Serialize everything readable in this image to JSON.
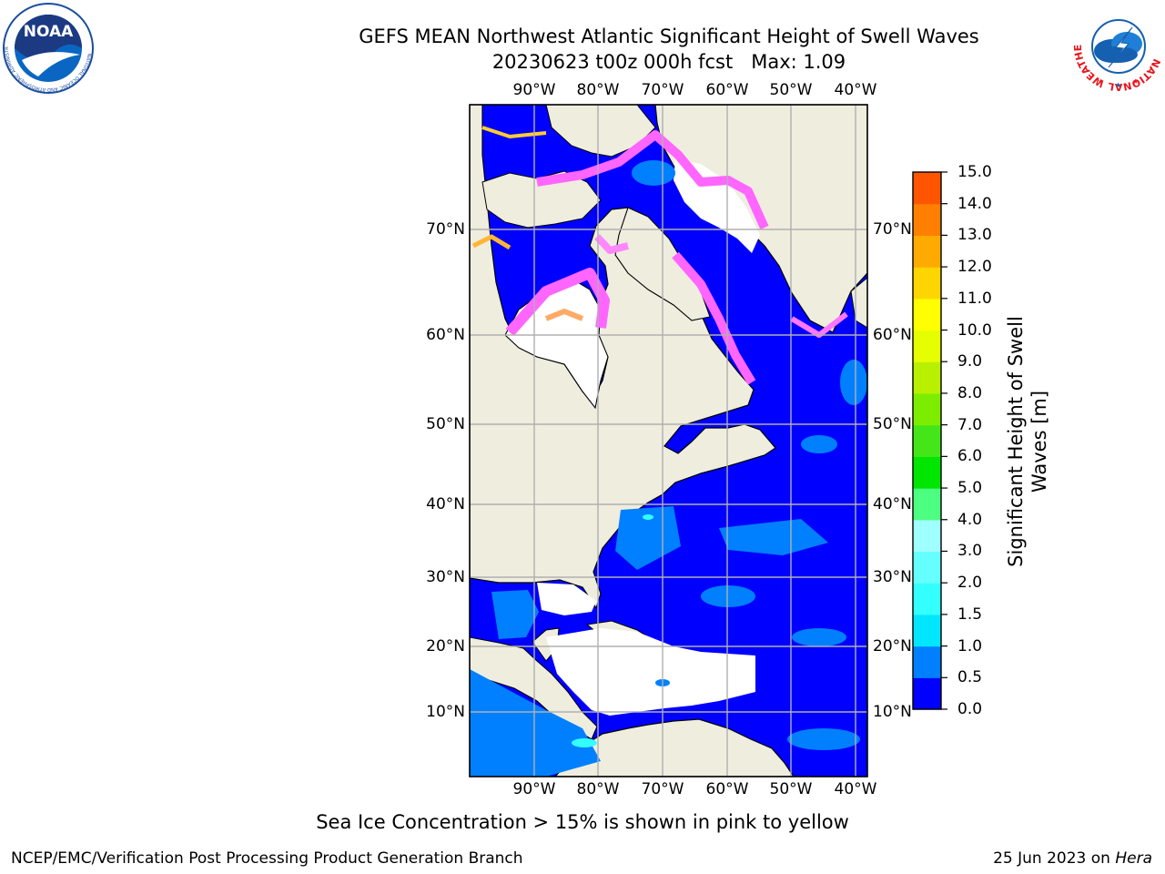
{
  "header": {
    "title": "GEFS MEAN Northwest Atlantic Significant Height of Swell Waves",
    "subtitle": "20230623 t00z 000h fcst   Max: 1.09"
  },
  "logos": {
    "left": {
      "name": "noaa-logo",
      "text": "NOAA",
      "ring_text": "NATIONAL OCEANIC AND ATMOSPHERIC ADMINISTRATION  U.S. DEPARTMENT OF COMMERCE"
    },
    "right": {
      "name": "nws-logo",
      "ring_text": "NATIONAL WEATHER SERVICE"
    }
  },
  "map": {
    "lon_labels": [
      "90°W",
      "80°W",
      "70°W",
      "60°W",
      "50°W",
      "40°W"
    ],
    "lat_labels": [
      "70°N",
      "60°N",
      "50°N",
      "40°N",
      "30°N",
      "20°N",
      "10°N"
    ],
    "colors": {
      "land": "#efedde",
      "ice_missing": "#ffffff",
      "grid": "#b0b0b0"
    }
  },
  "colorbar": {
    "label": "Significant Height of Swell Waves [m]",
    "ticks": [
      "0.0",
      "0.5",
      "1.0",
      "1.5",
      "2.0",
      "3.0",
      "4.0",
      "5.0",
      "6.0",
      "7.0",
      "8.0",
      "9.0",
      "10.0",
      "11.0",
      "12.0",
      "13.0",
      "14.0",
      "15.0"
    ],
    "colors": [
      "#0000ff",
      "#0080ff",
      "#00e6ff",
      "#33ffff",
      "#66ffff",
      "#a0ffff",
      "#4dff80",
      "#00e600",
      "#44e61a",
      "#7ded00",
      "#b8f000",
      "#e6ff00",
      "#ffff00",
      "#ffd500",
      "#ffaa00",
      "#ff8000",
      "#ff5500",
      "#ff2a00",
      "#ff0000"
    ]
  },
  "footer": {
    "note": "Sea Ice Concentration > 15% is shown in pink to yellow",
    "credit": "NCEP/EMC/Verification Post Processing Product Generation Branch",
    "date": "25 Jun 2023 on ",
    "host": "Hera"
  }
}
